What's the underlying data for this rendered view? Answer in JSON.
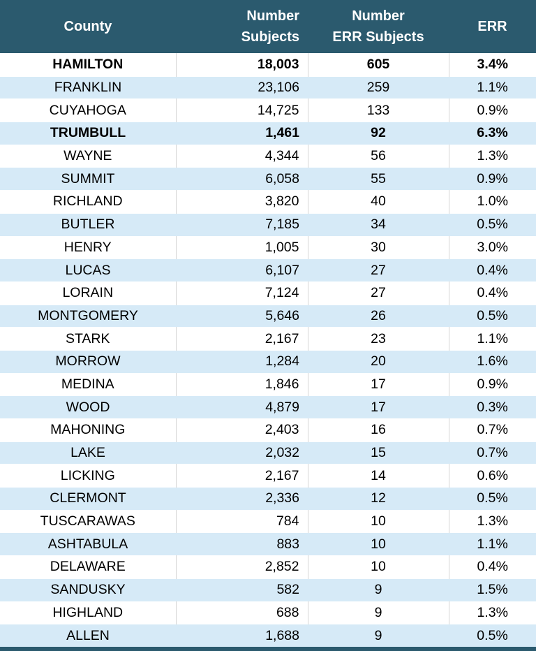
{
  "colors": {
    "header_background": "#2B5A6E",
    "stripe_row_background": "#D6EAF7",
    "plain_row_background": "#FFFFFF",
    "column_divider": "#D6D6D6",
    "header_text": "#FFFFFF",
    "body_text": "#000000"
  },
  "chart_data": {
    "type": "table",
    "title": "",
    "columns": [
      {
        "id": "county",
        "label_lines": [
          "County",
          ""
        ]
      },
      {
        "id": "subjects",
        "label_lines": [
          "Number",
          "Subjects"
        ]
      },
      {
        "id": "err_subjects",
        "label_lines": [
          "Number",
          "ERR Subjects"
        ]
      },
      {
        "id": "err",
        "label_lines": [
          "ERR",
          ""
        ]
      }
    ],
    "rows": [
      {
        "county": "HAMILTON",
        "number_subjects": "18,003",
        "number_err_subjects": "605",
        "err": "3.4%",
        "bold": true
      },
      {
        "county": "FRANKLIN",
        "number_subjects": "23,106",
        "number_err_subjects": "259",
        "err": "1.1%",
        "bold": false
      },
      {
        "county": "CUYAHOGA",
        "number_subjects": "14,725",
        "number_err_subjects": "133",
        "err": "0.9%",
        "bold": false
      },
      {
        "county": "TRUMBULL",
        "number_subjects": "1,461",
        "number_err_subjects": "92",
        "err": "6.3%",
        "bold": true
      },
      {
        "county": "WAYNE",
        "number_subjects": "4,344",
        "number_err_subjects": "56",
        "err": "1.3%",
        "bold": false
      },
      {
        "county": "SUMMIT",
        "number_subjects": "6,058",
        "number_err_subjects": "55",
        "err": "0.9%",
        "bold": false
      },
      {
        "county": "RICHLAND",
        "number_subjects": "3,820",
        "number_err_subjects": "40",
        "err": "1.0%",
        "bold": false
      },
      {
        "county": "BUTLER",
        "number_subjects": "7,185",
        "number_err_subjects": "34",
        "err": "0.5%",
        "bold": false
      },
      {
        "county": "HENRY",
        "number_subjects": "1,005",
        "number_err_subjects": "30",
        "err": "3.0%",
        "bold": false
      },
      {
        "county": "LUCAS",
        "number_subjects": "6,107",
        "number_err_subjects": "27",
        "err": "0.4%",
        "bold": false
      },
      {
        "county": "LORAIN",
        "number_subjects": "7,124",
        "number_err_subjects": "27",
        "err": "0.4%",
        "bold": false
      },
      {
        "county": "MONTGOMERY",
        "number_subjects": "5,646",
        "number_err_subjects": "26",
        "err": "0.5%",
        "bold": false
      },
      {
        "county": "STARK",
        "number_subjects": "2,167",
        "number_err_subjects": "23",
        "err": "1.1%",
        "bold": false
      },
      {
        "county": "MORROW",
        "number_subjects": "1,284",
        "number_err_subjects": "20",
        "err": "1.6%",
        "bold": false
      },
      {
        "county": "MEDINA",
        "number_subjects": "1,846",
        "number_err_subjects": "17",
        "err": "0.9%",
        "bold": false
      },
      {
        "county": "WOOD",
        "number_subjects": "4,879",
        "number_err_subjects": "17",
        "err": "0.3%",
        "bold": false
      },
      {
        "county": "MAHONING",
        "number_subjects": "2,403",
        "number_err_subjects": "16",
        "err": "0.7%",
        "bold": false
      },
      {
        "county": "LAKE",
        "number_subjects": "2,032",
        "number_err_subjects": "15",
        "err": "0.7%",
        "bold": false
      },
      {
        "county": "LICKING",
        "number_subjects": "2,167",
        "number_err_subjects": "14",
        "err": "0.6%",
        "bold": false
      },
      {
        "county": "CLERMONT",
        "number_subjects": "2,336",
        "number_err_subjects": "12",
        "err": "0.5%",
        "bold": false
      },
      {
        "county": "TUSCARAWAS",
        "number_subjects": "784",
        "number_err_subjects": "10",
        "err": "1.3%",
        "bold": false
      },
      {
        "county": "ASHTABULA",
        "number_subjects": "883",
        "number_err_subjects": "10",
        "err": "1.1%",
        "bold": false
      },
      {
        "county": "DELAWARE",
        "number_subjects": "2,852",
        "number_err_subjects": "10",
        "err": "0.4%",
        "bold": false
      },
      {
        "county": "SANDUSKY",
        "number_subjects": "582",
        "number_err_subjects": "9",
        "err": "1.5%",
        "bold": false
      },
      {
        "county": "HIGHLAND",
        "number_subjects": "688",
        "number_err_subjects": "9",
        "err": "1.3%",
        "bold": false
      },
      {
        "county": "ALLEN",
        "number_subjects": "1,688",
        "number_err_subjects": "9",
        "err": "0.5%",
        "bold": false
      }
    ]
  }
}
